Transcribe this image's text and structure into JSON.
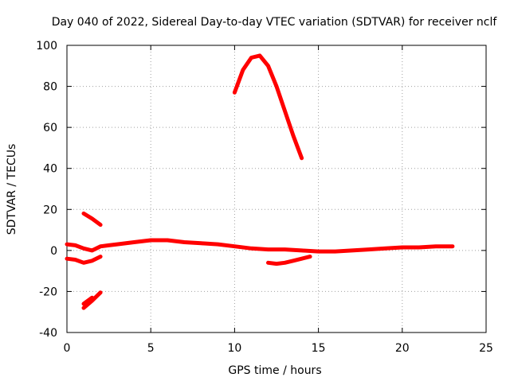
{
  "chart_data": {
    "type": "line",
    "title": "Day 040 of 2022, Sidereal Day-to-day VTEC variation (SDTVAR) for receiver nclf",
    "xlabel": "GPS time / hours",
    "ylabel": "SDTVAR / TECUs",
    "xlim": [
      0,
      25
    ],
    "ylim": [
      -40,
      100
    ],
    "xticks": [
      0,
      5,
      10,
      15,
      20,
      25
    ],
    "yticks": [
      -40,
      -20,
      0,
      20,
      40,
      60,
      80,
      100
    ],
    "grid": true,
    "color": "#ff0000",
    "series": [
      {
        "name": "arc-main",
        "x": [
          0.0,
          0.5,
          1.0,
          1.5,
          2.0,
          2.5,
          3.0,
          4.0,
          5.0,
          6.0,
          7.0,
          8.0,
          9.0,
          10.0,
          11.0,
          12.0,
          13.0,
          14.0,
          15.0,
          16.0,
          17.0,
          18.0,
          19.0,
          20.0,
          21.0,
          22.0,
          23.0
        ],
        "y": [
          3,
          2.5,
          1,
          0,
          2,
          2.5,
          3,
          4,
          5,
          5,
          4,
          3.5,
          3,
          2,
          1,
          0.5,
          0.5,
          0,
          -0.5,
          -0.5,
          0,
          0.5,
          1,
          1.5,
          1.5,
          2,
          2
        ]
      },
      {
        "name": "arc-peak",
        "x": [
          10.0,
          10.5,
          11.0,
          11.5,
          12.0,
          12.5,
          13.0,
          13.5,
          14.0
        ],
        "y": [
          77,
          88,
          94,
          95,
          90,
          80,
          68,
          56,
          45
        ]
      },
      {
        "name": "arc-neg-left",
        "x": [
          0.0,
          0.5,
          1.0,
          1.5,
          2.0
        ],
        "y": [
          -4,
          -4.5,
          -6,
          -5,
          -3
        ]
      },
      {
        "name": "arc-descending",
        "x": [
          1.0,
          1.5,
          2.0
        ],
        "y": [
          18,
          15.5,
          12.5
        ]
      },
      {
        "name": "arc-low",
        "x": [
          1.0,
          1.5,
          2.0
        ],
        "y": [
          -28,
          -24.5,
          -20.5
        ]
      },
      {
        "name": "arc-low-short",
        "x": [
          1.0,
          1.5
        ],
        "y": [
          -26,
          -23
        ]
      },
      {
        "name": "arc-neg-mid",
        "x": [
          12.0,
          12.5,
          13.0,
          13.5,
          14.0,
          14.5
        ],
        "y": [
          -6,
          -6.5,
          -6,
          -5,
          -4,
          -3
        ]
      }
    ]
  }
}
